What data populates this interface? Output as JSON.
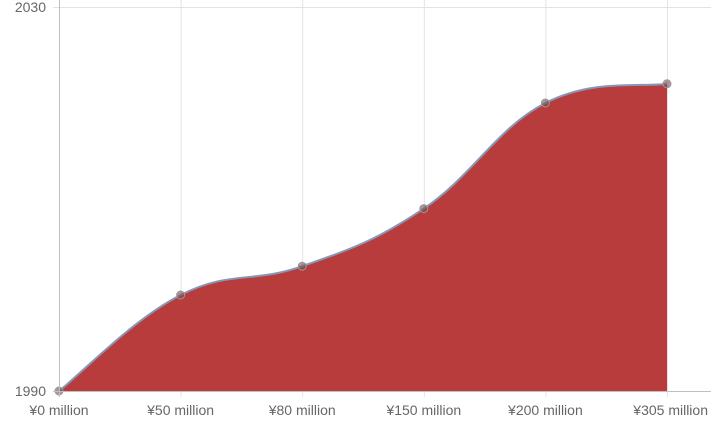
{
  "chart_data": {
    "type": "area",
    "title": "",
    "xlabel": "",
    "ylabel": "",
    "categories": [
      "¥0 million",
      "¥50 million",
      "¥80 million",
      "¥150 million",
      "¥200 million",
      "¥305 million"
    ],
    "y_tick_labels": [
      "1990",
      "2030"
    ],
    "ylim": [
      1990,
      2030
    ],
    "grid": true,
    "series": [
      {
        "values": [
          1990,
          2000,
          2003,
          2009,
          2020,
          2022
        ]
      }
    ],
    "colors": {
      "fill": "#b83c3c",
      "line": "#8797b6",
      "point": "#7a5050",
      "grid": "#e3e3e3",
      "axis": "#bfbfbf",
      "tick_text": "#666666"
    }
  }
}
